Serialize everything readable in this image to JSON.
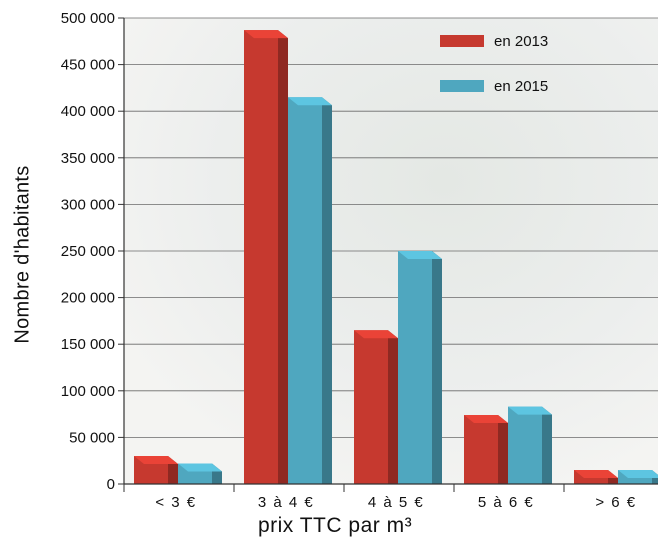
{
  "chart_data": {
    "type": "bar",
    "categories": [
      "< 3 €",
      "3 à 4 €",
      "4 à 5 €",
      "5 à 6 €",
      "> 6 €"
    ],
    "series": [
      {
        "name": "en 2013",
        "values": [
          30000,
          487000,
          165000,
          74000,
          15000
        ]
      },
      {
        "name": "en 2015",
        "values": [
          22000,
          415000,
          250000,
          83000,
          15000
        ]
      }
    ],
    "xlabel": "prix TTC par m³",
    "ylabel": "Nombre d'habitants",
    "ylim": [
      0,
      500000
    ],
    "yticks": [
      "0",
      "50 000",
      "100 000",
      "150 000",
      "200 000",
      "250 000",
      "300 000",
      "350 000",
      "400 000",
      "450 000",
      "500 000"
    ],
    "grid": true,
    "legend": "top-right",
    "colors": {
      "en 2013": "#c6392f",
      "en 2015": "#4fa7bf"
    }
  }
}
